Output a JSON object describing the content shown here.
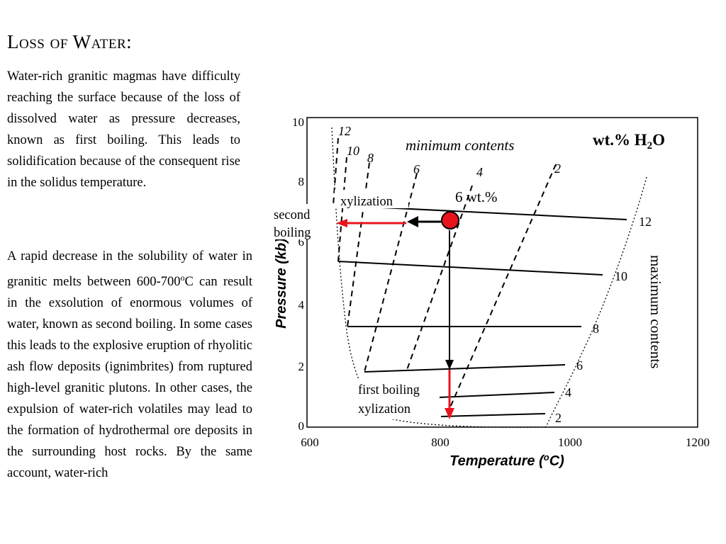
{
  "title": "Loss of Water:",
  "paragraph1": "Water-rich granitic magmas have difficulty reaching the surface because of the loss of dissolved water as pressure decreases, known as first boiling.  This leads to solidification because of the consequent rise in the solidus temperature.",
  "paragraph2": {
    "before": "A rapid decrease in the solubility of water in granitic melts between 600-700",
    "sup": "o",
    "after": "C can result in the exsolution of enormous volumes of water, known as second boiling. In some cases this leads to the explosive eruption of rhyolitic ash flow deposits (ignimbrites) from ruptured high-level granitic plutons.  In other cases, the expulsion of water-rich volatiles may lead to the formation of hydrothermal ore deposits in the surrounding host rocks.   By the same account, water-rich"
  },
  "diagram": {
    "legend": {
      "main": "wt.% H",
      "sub": "2",
      "tail": "O"
    },
    "min_label": "minimum contents",
    "max_label": "maximum contents",
    "x_axis": {
      "before": "Temperature (",
      "sup": "o",
      "after": "C)",
      "ticks": [
        "600",
        "800",
        "1000",
        "1200"
      ]
    },
    "y_axis": {
      "label": "Pressure (kb)",
      "ticks": [
        "0",
        "2",
        "4",
        "6",
        "8",
        "10"
      ]
    },
    "solidus_labels": [
      "12",
      "10",
      "8",
      "6",
      "4",
      "2"
    ],
    "min_line_labels": [
      "12",
      "10",
      "8",
      "6",
      "4",
      "2"
    ],
    "ann_second": "second",
    "ann_boiling": "boiling",
    "ann_xyl_top": "xylization",
    "ann_6wt": "6 wt.%",
    "ann_first": "first boiling",
    "ann_xyl_bottom": "xylization",
    "accent_red": "#e8141c"
  }
}
